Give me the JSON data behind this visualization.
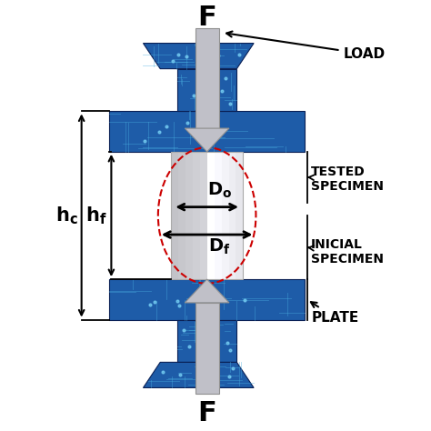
{
  "bg_color": "#ffffff",
  "blue_dark": "#1a4080",
  "blue_mid": "#1e5ca8",
  "blue_light": "#2a7acc",
  "spec_color": "#d0d0d0",
  "spec_highlight": "#f0f0f0",
  "arrow_fill": "#c0c0c8",
  "arrow_edge": "#909090",
  "dash_color": "#cc0000",
  "label_load": "LOAD",
  "label_tested": "TESTED\nSPECIMEN",
  "label_inicial": "INICIAL\nSPECIMEN",
  "label_plate": "PLATE",
  "label_F": "F",
  "label_Do": "D",
  "label_Do_sub": "o",
  "label_Df": "D",
  "label_Df_sub": "f",
  "label_hc": "h",
  "label_hc_sub": "c",
  "label_hf": "h",
  "label_hf_sub": "f"
}
